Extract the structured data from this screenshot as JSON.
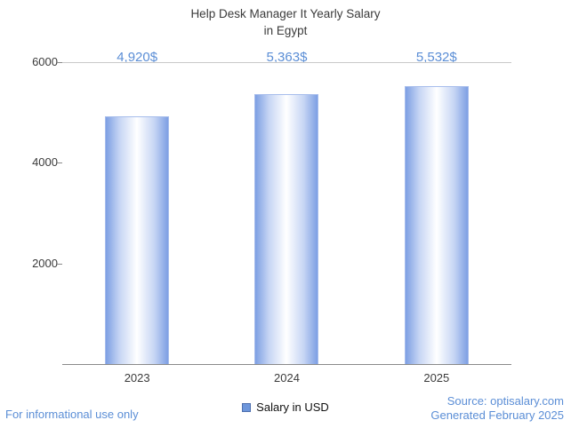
{
  "title": "Help Desk Manager It Yearly Salary\nin Egypt",
  "chart_data": {
    "type": "bar",
    "title": "Help Desk Manager It Yearly Salary in Egypt",
    "categories": [
      "2023",
      "2024",
      "2025"
    ],
    "values": [
      4920,
      5363,
      5532
    ],
    "value_labels": [
      "4,920$",
      "5,363$",
      "5,532$"
    ],
    "series_name": "Salary in USD",
    "xlabel": "",
    "ylabel": "",
    "ylim": [
      0,
      6000
    ],
    "yticks": [
      2000,
      4000,
      6000
    ],
    "grid": "top-line-only",
    "legend_position": "bottom-center",
    "bar_color": "#7d9fe3",
    "bar_center_color": "#ffffff",
    "value_label_color": "#5b8ed6"
  },
  "legend": {
    "swatch_color": "#6d96db",
    "label": "Salary in USD"
  },
  "footer": {
    "disclaimer": "For informational use only",
    "source": "Source: optisalary.com",
    "generated": "Generated February 2025"
  }
}
